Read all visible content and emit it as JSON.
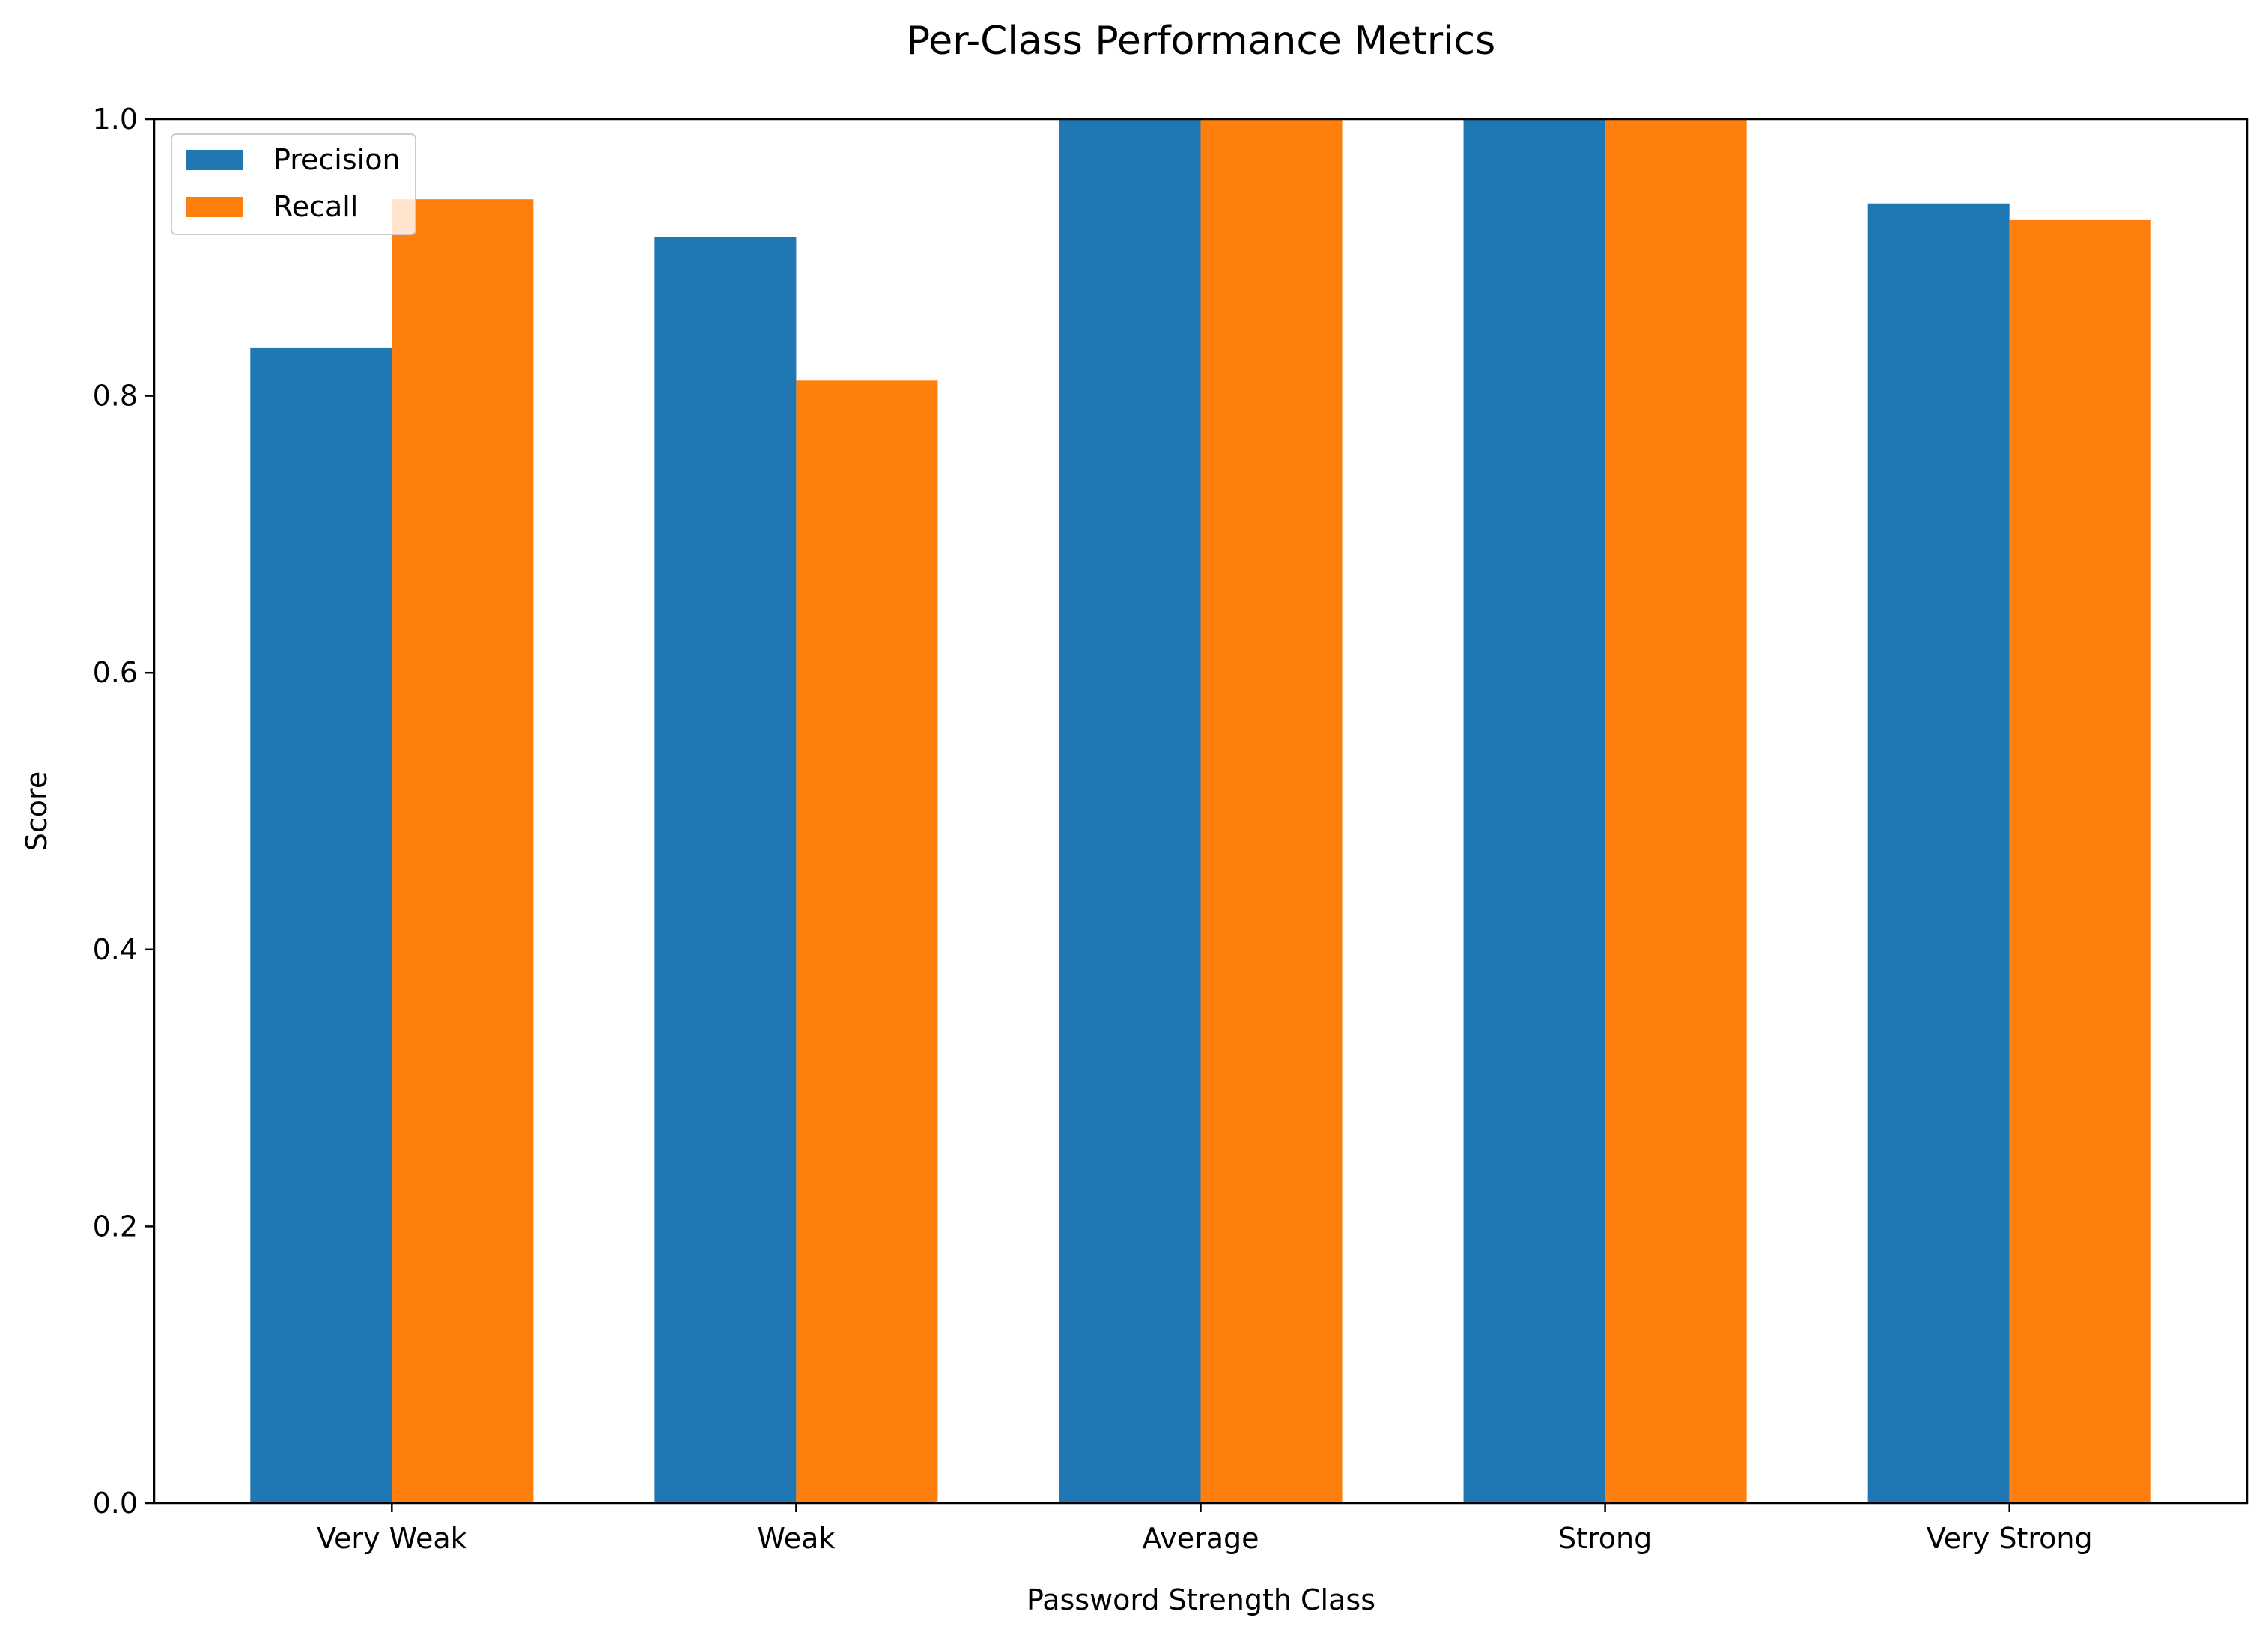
{
  "chart_data": {
    "type": "bar",
    "title": "Per-Class Performance Metrics",
    "xlabel": "Password Strength Class",
    "ylabel": "Score",
    "categories": [
      "Very Weak",
      "Weak",
      "Average",
      "Strong",
      "Very Strong"
    ],
    "series": [
      {
        "name": "Precision",
        "color": "#1f77b4",
        "values": [
          0.835,
          0.915,
          1.0,
          1.0,
          0.939
        ]
      },
      {
        "name": "Recall",
        "color": "#ff7f0e",
        "values": [
          0.942,
          0.811,
          1.0,
          1.0,
          0.927
        ]
      }
    ],
    "ylim": [
      0,
      1.0
    ],
    "yticks": [
      "0.0",
      "0.2",
      "0.4",
      "0.6",
      "0.8",
      "1.0"
    ],
    "grid": false,
    "legend_position": "top-left"
  }
}
